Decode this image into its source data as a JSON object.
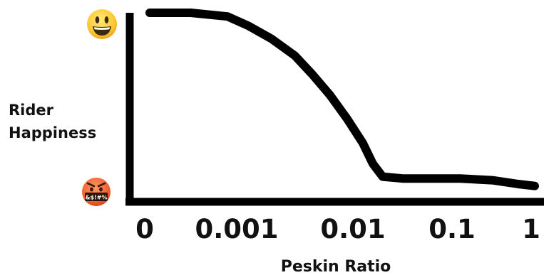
{
  "chart_data": {
    "type": "line",
    "xlabel": "Peskin Ratio",
    "ylabel_lines": [
      "Rider",
      "Happiness"
    ],
    "x_ticks": [
      "0",
      "0.001",
      "0.01",
      "0.1",
      "1"
    ],
    "y_ticks": [
      {
        "icon": "grinning-face-icon"
      },
      {
        "icon": "face-with-symbols-on-mouth-icon",
        "text": "&$!#%"
      }
    ],
    "ylim": [
      0,
      1
    ],
    "series": [
      {
        "x": [
          0,
          0.5,
          0.9,
          1.1,
          1.3,
          1.5,
          1.65,
          1.8,
          1.95,
          2.1,
          2.2,
          2.3,
          2.5,
          2.8,
          3.1,
          3.5,
          3.8,
          4.0
        ],
        "y": [
          1.0,
          1.0,
          0.98,
          0.93,
          0.86,
          0.77,
          0.67,
          0.56,
          0.43,
          0.3,
          0.19,
          0.12,
          0.11,
          0.11,
          0.11,
          0.1,
          0.08,
          0.07
        ]
      }
    ],
    "colors": {
      "line": "#000000",
      "axis": "#000000"
    },
    "grid": false
  }
}
